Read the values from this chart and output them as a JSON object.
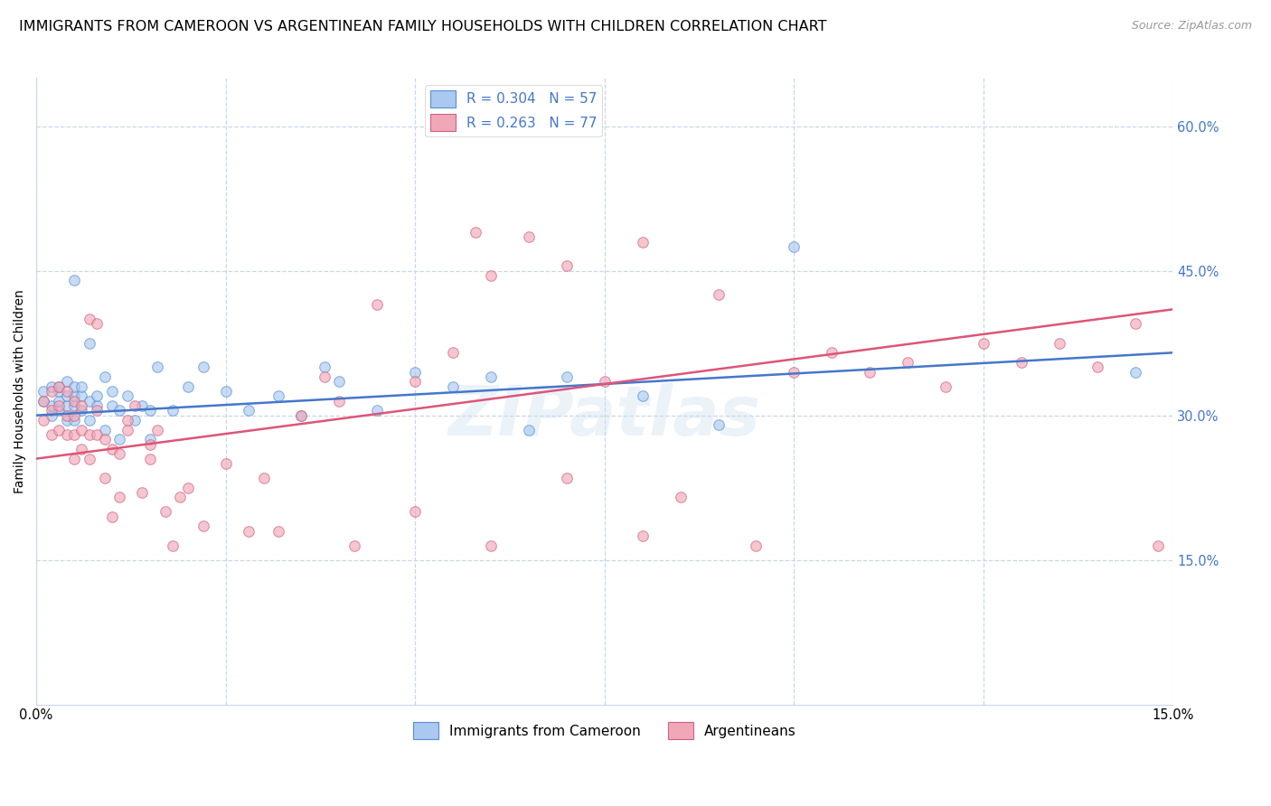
{
  "title": "IMMIGRANTS FROM CAMEROON VS ARGENTINEAN FAMILY HOUSEHOLDS WITH CHILDREN CORRELATION CHART",
  "source": "Source: ZipAtlas.com",
  "ylabel_label": "Family Households with Children",
  "legend_entry_blue": "R = 0.304   N = 57",
  "legend_entry_pink": "R = 0.263   N = 77",
  "legend_label_bottom_1": "Immigrants from Cameroon",
  "legend_label_bottom_2": "Argentineans",
  "blue_color": "#aac8f0",
  "blue_edge_color": "#5590d0",
  "pink_color": "#f0a8b8",
  "pink_edge_color": "#d06080",
  "blue_line_color": "#4477cc",
  "pink_line_color": "#dd5577",
  "watermark_color": "#c8ddf0",
  "grid_color": "#c8d8e8",
  "right_axis_label_color": "#4477cc",
  "background_color": "#ffffff",
  "xlim": [
    0.0,
    0.15
  ],
  "ylim": [
    0.0,
    0.65
  ],
  "ytick_values": [
    0.15,
    0.3,
    0.45,
    0.6
  ],
  "ytick_labels": [
    "15.0%",
    "30.0%",
    "45.0%",
    "60.0%"
  ],
  "xtick_values": [
    0.0,
    0.025,
    0.05,
    0.075,
    0.1,
    0.125,
    0.15
  ],
  "xtick_edge_labels": [
    "0.0%",
    "",
    "",
    "",
    "",
    "",
    "15.0%"
  ],
  "blue_line_x": [
    0.0,
    0.15
  ],
  "blue_line_y": [
    0.3,
    0.365
  ],
  "pink_line_x": [
    0.0,
    0.15
  ],
  "pink_line_y": [
    0.255,
    0.41
  ],
  "blue_scatter_x": [
    0.001,
    0.001,
    0.002,
    0.002,
    0.002,
    0.003,
    0.003,
    0.003,
    0.003,
    0.004,
    0.004,
    0.004,
    0.004,
    0.005,
    0.005,
    0.005,
    0.005,
    0.005,
    0.006,
    0.006,
    0.006,
    0.007,
    0.007,
    0.007,
    0.008,
    0.008,
    0.009,
    0.009,
    0.01,
    0.01,
    0.011,
    0.011,
    0.012,
    0.013,
    0.014,
    0.015,
    0.015,
    0.016,
    0.018,
    0.02,
    0.022,
    0.025,
    0.028,
    0.032,
    0.035,
    0.038,
    0.04,
    0.045,
    0.05,
    0.055,
    0.06,
    0.065,
    0.07,
    0.08,
    0.09,
    0.1,
    0.145
  ],
  "blue_scatter_y": [
    0.315,
    0.325,
    0.3,
    0.31,
    0.33,
    0.305,
    0.315,
    0.325,
    0.33,
    0.295,
    0.31,
    0.32,
    0.335,
    0.295,
    0.31,
    0.32,
    0.33,
    0.44,
    0.305,
    0.32,
    0.33,
    0.295,
    0.315,
    0.375,
    0.31,
    0.32,
    0.285,
    0.34,
    0.31,
    0.325,
    0.275,
    0.305,
    0.32,
    0.295,
    0.31,
    0.275,
    0.305,
    0.35,
    0.305,
    0.33,
    0.35,
    0.325,
    0.305,
    0.32,
    0.3,
    0.35,
    0.335,
    0.305,
    0.345,
    0.33,
    0.34,
    0.285,
    0.34,
    0.32,
    0.29,
    0.475,
    0.345
  ],
  "pink_scatter_x": [
    0.001,
    0.001,
    0.002,
    0.002,
    0.002,
    0.003,
    0.003,
    0.003,
    0.004,
    0.004,
    0.004,
    0.005,
    0.005,
    0.005,
    0.005,
    0.006,
    0.006,
    0.006,
    0.007,
    0.007,
    0.007,
    0.008,
    0.008,
    0.008,
    0.009,
    0.009,
    0.01,
    0.01,
    0.011,
    0.011,
    0.012,
    0.012,
    0.013,
    0.014,
    0.015,
    0.015,
    0.016,
    0.017,
    0.018,
    0.019,
    0.02,
    0.022,
    0.025,
    0.028,
    0.03,
    0.032,
    0.035,
    0.038,
    0.04,
    0.042,
    0.045,
    0.05,
    0.055,
    0.058,
    0.06,
    0.065,
    0.07,
    0.075,
    0.08,
    0.085,
    0.09,
    0.095,
    0.1,
    0.105,
    0.11,
    0.115,
    0.12,
    0.125,
    0.13,
    0.135,
    0.14,
    0.145,
    0.148,
    0.05,
    0.06,
    0.07,
    0.08
  ],
  "pink_scatter_y": [
    0.295,
    0.315,
    0.28,
    0.305,
    0.325,
    0.285,
    0.31,
    0.33,
    0.28,
    0.3,
    0.325,
    0.255,
    0.28,
    0.3,
    0.315,
    0.265,
    0.285,
    0.31,
    0.255,
    0.28,
    0.4,
    0.28,
    0.305,
    0.395,
    0.235,
    0.275,
    0.195,
    0.265,
    0.215,
    0.26,
    0.285,
    0.295,
    0.31,
    0.22,
    0.255,
    0.27,
    0.285,
    0.2,
    0.165,
    0.215,
    0.225,
    0.185,
    0.25,
    0.18,
    0.235,
    0.18,
    0.3,
    0.34,
    0.315,
    0.165,
    0.415,
    0.335,
    0.365,
    0.49,
    0.445,
    0.485,
    0.455,
    0.335,
    0.48,
    0.215,
    0.425,
    0.165,
    0.345,
    0.365,
    0.345,
    0.355,
    0.33,
    0.375,
    0.355,
    0.375,
    0.35,
    0.395,
    0.165,
    0.2,
    0.165,
    0.235,
    0.175
  ],
  "scatter_size": 70,
  "scatter_alpha": 0.65,
  "scatter_linewidth": 0.8,
  "line_width": 1.8,
  "title_fontsize": 11.5,
  "source_fontsize": 9,
  "tick_fontsize": 10.5,
  "ylabel_fontsize": 10,
  "legend_fontsize": 11,
  "watermark_fontsize": 55,
  "watermark_alpha": 0.35
}
